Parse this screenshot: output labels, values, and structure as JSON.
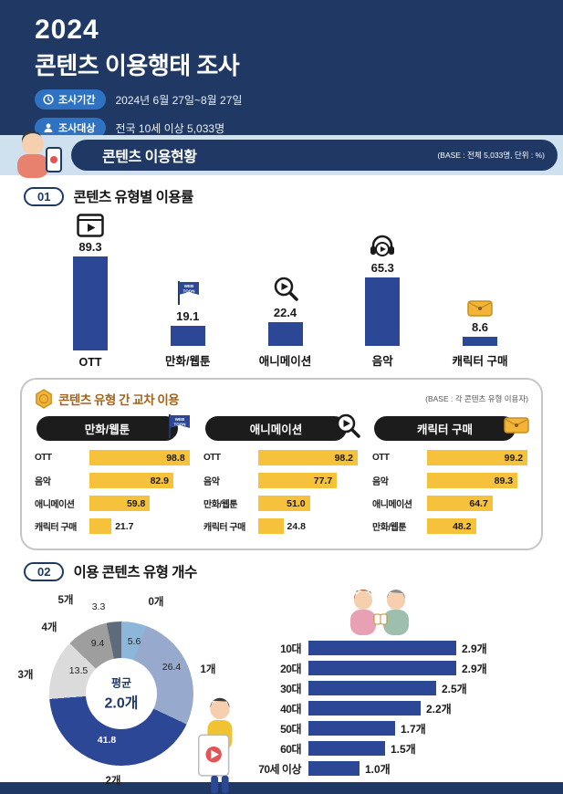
{
  "colors": {
    "navy": "#1f3864",
    "bar_blue": "#2c4795",
    "badge_blue": "#2f72c2",
    "band_bg": "#cfe0ef",
    "accent_yellow": "#f6c23b",
    "header_pill_black": "#1c1c1c",
    "cross_title_brown": "#a2641c"
  },
  "header": {
    "year": "2024",
    "title": "콘텐츠 이용행태 조사",
    "badges": [
      {
        "icon": "clock-icon",
        "label": "조사기간",
        "value": "2024년 6월 27일~8월 27일"
      },
      {
        "icon": "person-icon",
        "label": "조사대상",
        "value": "전국 10세 이상 5,033명"
      }
    ]
  },
  "band": {
    "title": "콘텐츠 이용현황",
    "note": "(BASE : 전체 5,033명, 단위 : %)"
  },
  "section1": {
    "number": "01",
    "title": "콘텐츠 유형별 이용률",
    "icons": [
      "video-player-icon",
      "webtoon-flag-icon",
      "magnifier-play-icon",
      "headphones-icon",
      "wallet-icon"
    ]
  },
  "cross": {
    "title": "콘텐츠 유형 간 교차 이용",
    "note": "(BASE : 각 콘텐츠 유형 이용자)",
    "columns": [
      {
        "header": "만화/웹툰",
        "icon": "webtoon-flag-icon"
      },
      {
        "header": "애니메이션",
        "icon": "magnifier-play-icon"
      },
      {
        "header": "캐릭터 구매",
        "icon": "wallet-icon"
      }
    ]
  },
  "section2": {
    "number": "02",
    "title": "이용 콘텐츠 유형 개수",
    "donut": {
      "center_top": "평균",
      "center_bottom": "2.0개"
    }
  },
  "chart_data": [
    {
      "type": "bar",
      "title": "콘텐츠 유형별 이용률",
      "unit": "%",
      "ylim": [
        0,
        100
      ],
      "categories": [
        "OTT",
        "만화/웹툰",
        "애니메이션",
        "음악",
        "캐릭터 구매"
      ],
      "values": [
        89.3,
        19.1,
        22.4,
        65.3,
        8.6
      ]
    },
    {
      "type": "bar",
      "title": "만화/웹툰 이용자의 교차 이용률",
      "unit": "%",
      "categories": [
        "OTT",
        "음악",
        "애니메이션",
        "캐릭터 구매"
      ],
      "values": [
        98.8,
        82.9,
        59.8,
        21.7
      ]
    },
    {
      "type": "bar",
      "title": "애니메이션 이용자의 교차 이용률",
      "unit": "%",
      "categories": [
        "OTT",
        "음악",
        "만화/웹툰",
        "캐릭터 구매"
      ],
      "values": [
        98.2,
        77.7,
        51.0,
        24.8
      ]
    },
    {
      "type": "bar",
      "title": "캐릭터 구매 이용자의 교차 이용률",
      "unit": "%",
      "categories": [
        "OTT",
        "음악",
        "애니메이션",
        "만화/웹툰"
      ],
      "values": [
        99.2,
        89.3,
        64.7,
        48.2
      ]
    },
    {
      "type": "pie",
      "title": "이용 콘텐츠 유형 개수 분포",
      "unit": "%",
      "categories": [
        "0개",
        "1개",
        "2개",
        "3개",
        "4개",
        "5개"
      ],
      "values": [
        5.6,
        26.4,
        41.8,
        13.5,
        9.4,
        3.3
      ],
      "colors": [
        "#8cb7da",
        "#97a9cd",
        "#2c4795",
        "#dbdbdb",
        "#9e9e9e",
        "#5e6b7c"
      ],
      "center_label": "평균 2.0개"
    },
    {
      "type": "bar",
      "title": "연령별 평균 이용 콘텐츠 유형 개수",
      "unit": "개",
      "categories": [
        "10대",
        "20대",
        "30대",
        "40대",
        "50대",
        "60대",
        "70세 이상"
      ],
      "values": [
        2.9,
        2.9,
        2.5,
        2.2,
        1.7,
        1.5,
        1.0
      ]
    }
  ]
}
